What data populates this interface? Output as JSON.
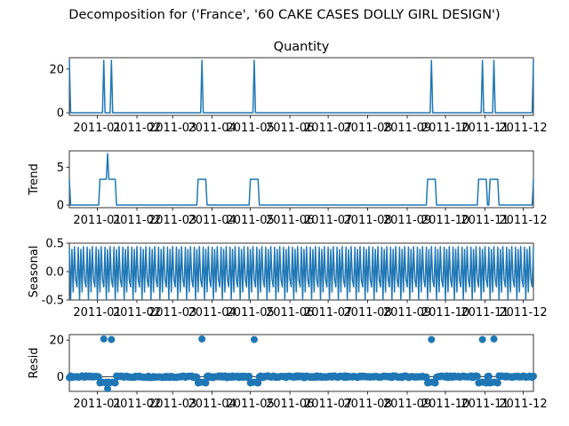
{
  "figure": {
    "suptitle": "Decomposition for ('France', '60 CAKE CASES DOLLY GIRL DESIGN')"
  },
  "colors": {
    "series": "#1f77b4",
    "axis": "#000000",
    "background": "#ffffff"
  },
  "x_tick_labels": [
    "2011-01",
    "2011-02",
    "2011-03",
    "2011-04",
    "2011-05",
    "2011-06",
    "2011-07",
    "2011-08",
    "2011-09",
    "2011-10",
    "2011-11",
    "2011-12"
  ],
  "chart_data": [
    {
      "type": "line",
      "title": "Quantity",
      "ylabel": "",
      "ylim": [
        -1.2,
        25.2
      ],
      "yticks": [
        0,
        20
      ],
      "series": [
        {
          "values_sparse": "baseline 0 with spikes of 24 at sale days"
        }
      ],
      "x_start": "2010-12-10",
      "x_end": "2011-12-09",
      "spikes": [
        {
          "date": "2010-12-10",
          "value": 24
        },
        {
          "date": "2011-01-06",
          "value": 24
        },
        {
          "date": "2011-01-12",
          "value": 24
        },
        {
          "date": "2011-03-24",
          "value": 24
        },
        {
          "date": "2011-05-04",
          "value": 24
        },
        {
          "date": "2011-09-20",
          "value": 24
        },
        {
          "date": "2011-10-30",
          "value": 24
        },
        {
          "date": "2011-11-08",
          "value": 24
        },
        {
          "date": "2011-12-09",
          "value": 24
        }
      ]
    },
    {
      "type": "line",
      "title": "",
      "ylabel": "Trend",
      "ylim": [
        -0.35,
        7.2
      ],
      "yticks": [
        0,
        5
      ],
      "plateaus": [
        {
          "start": "2011-01-03",
          "end": "2011-01-15",
          "value": 3.43
        },
        {
          "start": "2011-03-21",
          "end": "2011-03-27",
          "value": 3.43
        },
        {
          "start": "2011-05-01",
          "end": "2011-05-07",
          "value": 3.43
        },
        {
          "start": "2011-09-17",
          "end": "2011-09-23",
          "value": 3.43
        },
        {
          "start": "2011-10-27",
          "end": "2011-11-02",
          "value": 3.43
        },
        {
          "start": "2011-11-05",
          "end": "2011-11-11",
          "value": 3.43
        }
      ],
      "peak": {
        "date": "2011-01-09",
        "value": 6.86
      },
      "edge_values": {
        "start": 3.43,
        "end": 3.43
      }
    },
    {
      "type": "line",
      "title": "",
      "ylabel": "Seasonal",
      "ylim": [
        -0.5,
        0.5
      ],
      "yticks": [
        -0.5,
        0.0,
        0.5
      ],
      "period_days": 7,
      "weekly_pattern": [
        0.43,
        -0.49,
        0.39,
        -0.36,
        0.44,
        -0.14,
        -0.27
      ]
    },
    {
      "type": "scatter",
      "title": "",
      "ylabel": "Resid",
      "ylim": [
        -8,
        23
      ],
      "yticks": [
        0,
        20
      ],
      "outliers": [
        {
          "date": "2011-01-06",
          "value": 20.6
        },
        {
          "date": "2011-01-12",
          "value": 20.3
        },
        {
          "date": "2011-03-24",
          "value": 20.6
        },
        {
          "date": "2011-05-04",
          "value": 20.3
        },
        {
          "date": "2011-09-20",
          "value": 20.3
        },
        {
          "date": "2011-10-30",
          "value": 20.3
        },
        {
          "date": "2011-11-08",
          "value": 20.6
        }
      ],
      "dips": [
        {
          "date": "2011-01-09",
          "value": -6.5
        }
      ],
      "baseline_noise": 0.5
    }
  ]
}
